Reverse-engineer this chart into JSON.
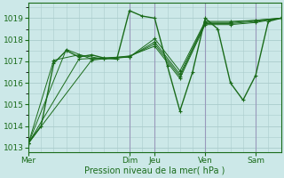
{
  "bg_color": "#cce8e8",
  "grid_color": "#aacccc",
  "line_color": "#1a6b1a",
  "marker_color": "#1a6b1a",
  "xlabel": "Pression niveau de la mer( hPa )",
  "ylim": [
    1012.8,
    1019.7
  ],
  "yticks": [
    1013,
    1014,
    1015,
    1016,
    1017,
    1018,
    1019
  ],
  "x_day_labels": [
    "Mer",
    "Dim",
    "Jeu",
    "Ven",
    "Sam"
  ],
  "x_day_positions": [
    0,
    48,
    60,
    84,
    108
  ],
  "xlim": [
    0,
    120
  ],
  "vlines": [
    48,
    60,
    84,
    108
  ],
  "vline_color": "#9999bb",
  "series": [
    {
      "x": [
        0,
        6,
        12,
        18,
        24,
        30,
        36,
        42,
        48,
        54,
        60,
        66,
        72,
        78,
        84,
        90,
        96,
        102,
        108,
        114,
        120
      ],
      "y": [
        1013.2,
        1014.0,
        1016.9,
        1017.5,
        1017.2,
        1017.3,
        1017.15,
        1017.1,
        1019.35,
        1019.1,
        1019.0,
        1016.8,
        1014.7,
        1016.5,
        1019.0,
        1018.5,
        1016.0,
        1015.2,
        1016.35,
        1018.85,
        1019.0
      ]
    },
    {
      "x": [
        0,
        12,
        24,
        36,
        48,
        60,
        72,
        84,
        96,
        108,
        120
      ],
      "y": [
        1013.2,
        1017.05,
        1017.3,
        1017.1,
        1017.2,
        1018.05,
        1016.55,
        1018.85,
        1018.85,
        1018.9,
        1019.0
      ]
    },
    {
      "x": [
        0,
        18,
        30,
        48,
        60,
        72,
        84,
        96,
        108,
        120
      ],
      "y": [
        1013.2,
        1017.55,
        1017.1,
        1017.2,
        1017.9,
        1016.4,
        1018.8,
        1018.8,
        1018.9,
        1019.0
      ]
    },
    {
      "x": [
        0,
        24,
        48,
        60,
        72,
        84,
        96,
        108,
        120
      ],
      "y": [
        1013.2,
        1017.1,
        1017.22,
        1017.8,
        1016.3,
        1018.75,
        1018.75,
        1018.85,
        1019.0
      ]
    },
    {
      "x": [
        0,
        30,
        48,
        60,
        72,
        84,
        96,
        108,
        120
      ],
      "y": [
        1013.2,
        1017.05,
        1017.25,
        1017.7,
        1016.2,
        1018.7,
        1018.7,
        1018.8,
        1019.0
      ]
    }
  ]
}
